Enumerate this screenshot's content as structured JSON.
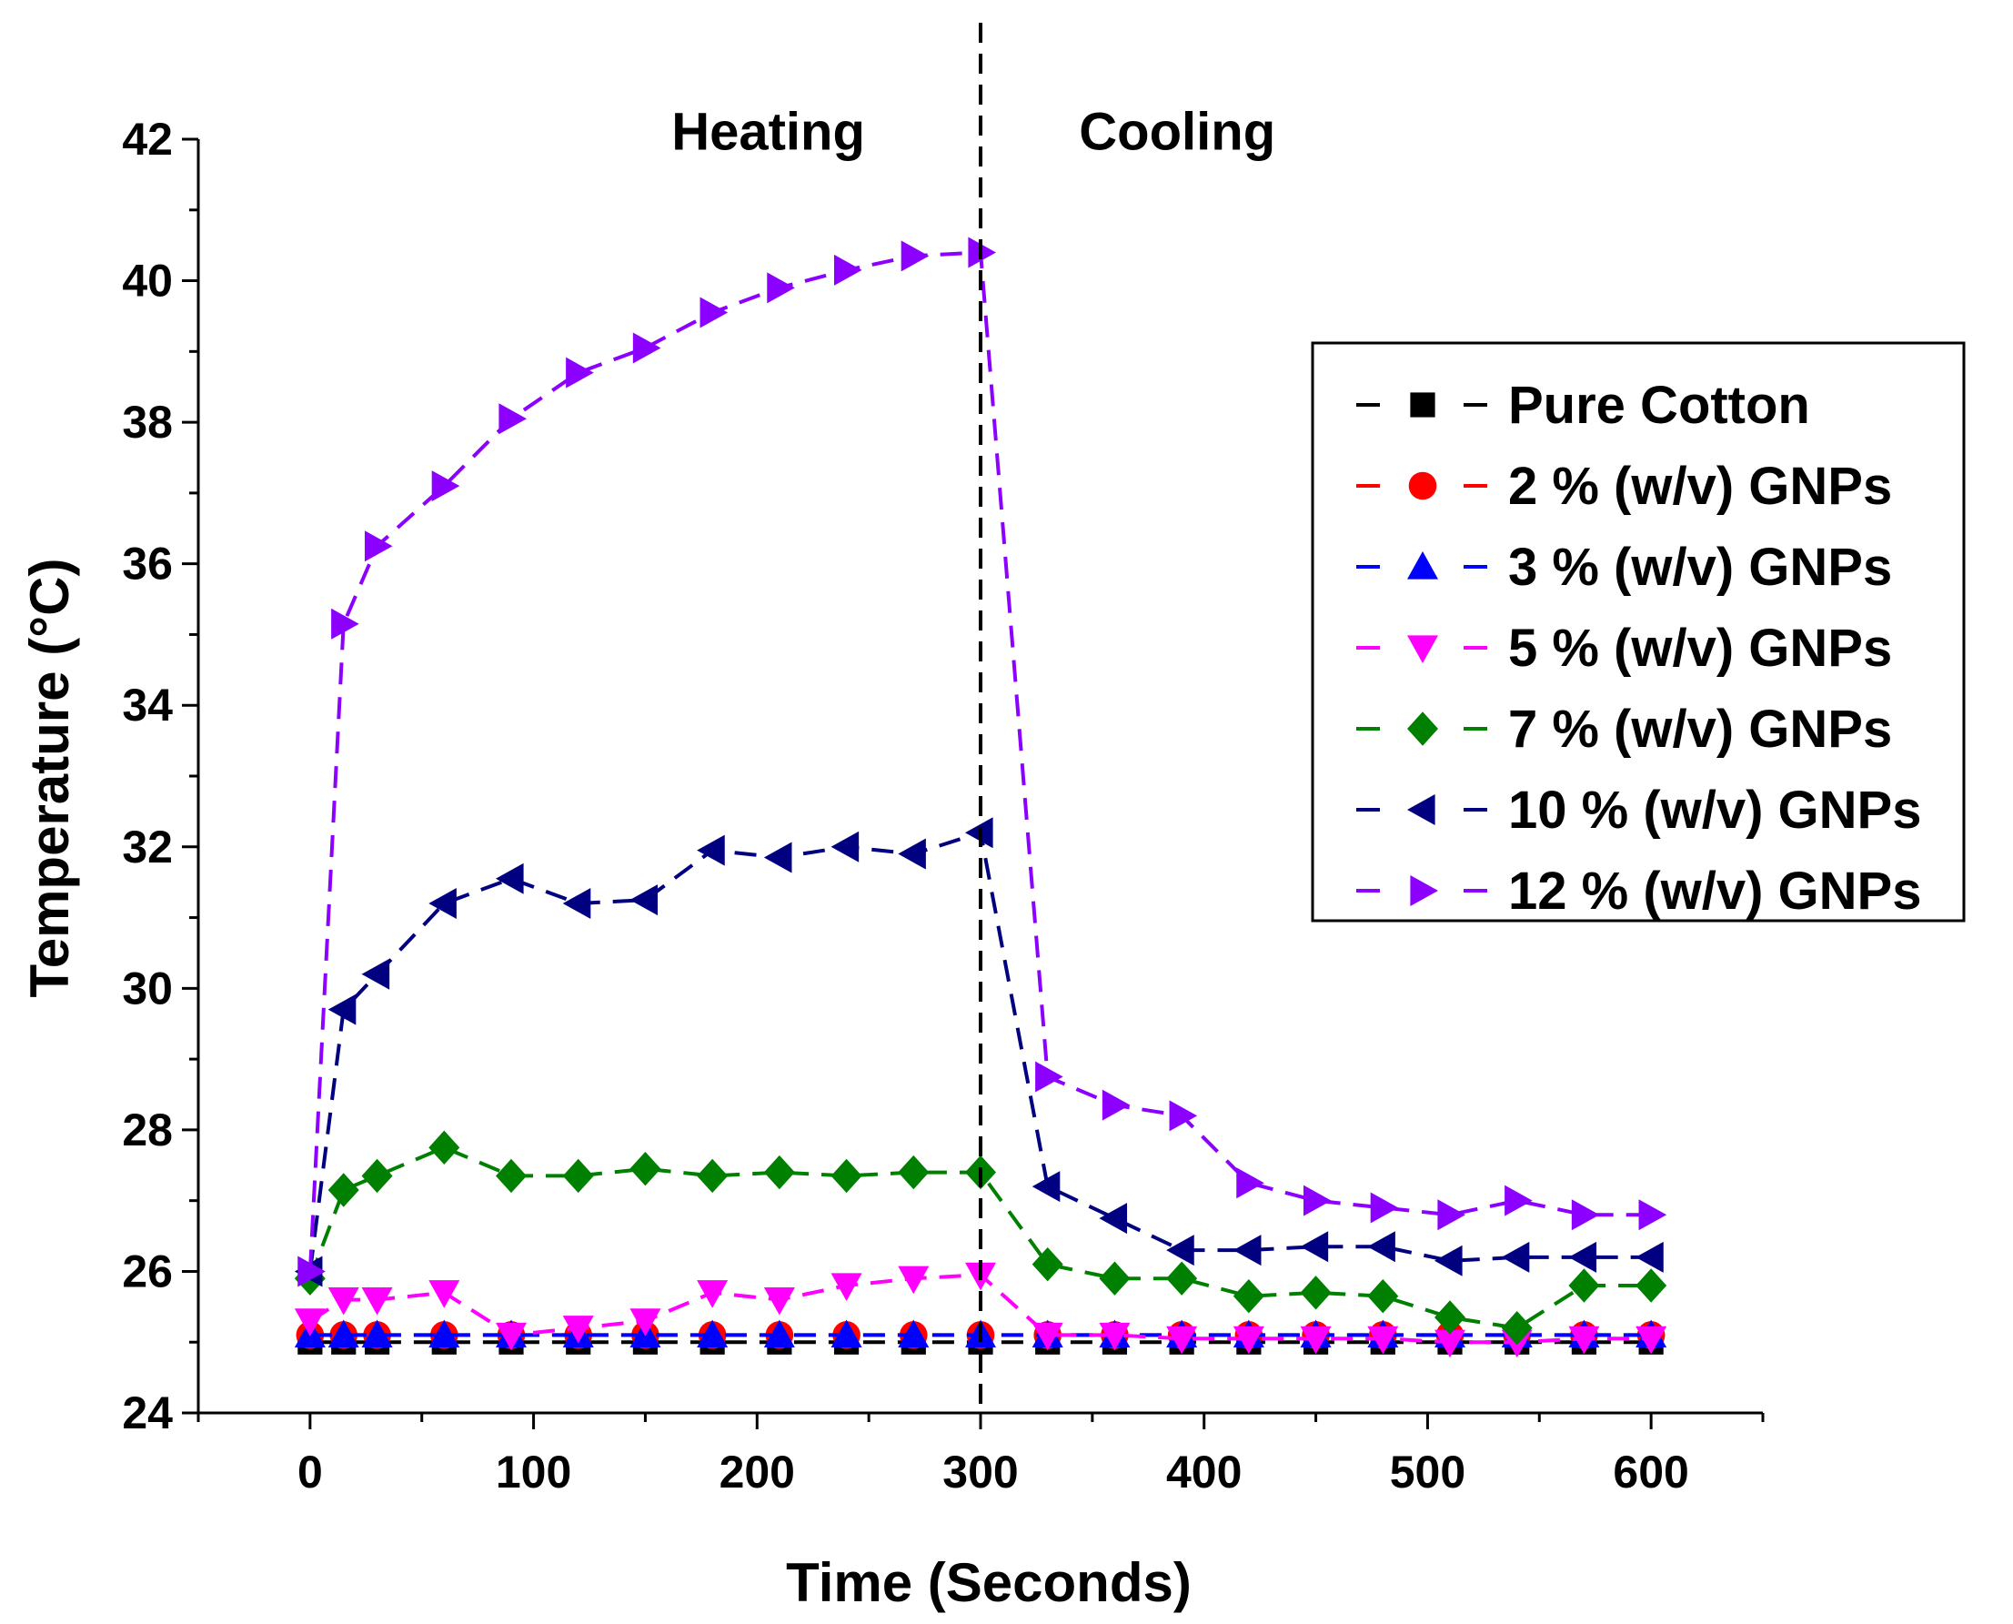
{
  "chart_data": {
    "type": "line",
    "title": "",
    "xlabel": "Time (Seconds)",
    "ylabel": "Temperature (°C)",
    "xlim": [
      -50,
      650
    ],
    "ylim": [
      24,
      42
    ],
    "xticks": [
      0,
      100,
      200,
      300,
      400,
      500,
      600
    ],
    "yticks": [
      24,
      26,
      28,
      30,
      32,
      34,
      36,
      38,
      40,
      42
    ],
    "grid": false,
    "legend_position": "right",
    "annotations": [
      {
        "id": "heating",
        "text": "Heating",
        "x": 205,
        "y": 41.85
      },
      {
        "id": "cooling",
        "text": "Cooling",
        "x": 388,
        "y": 41.85
      }
    ],
    "divider_x": 300,
    "x": [
      0,
      15,
      30,
      60,
      90,
      120,
      150,
      180,
      210,
      240,
      270,
      300,
      330,
      360,
      390,
      420,
      450,
      480,
      510,
      540,
      570,
      600
    ],
    "series": [
      {
        "name": "Pure Cotton",
        "color": "#000000",
        "marker": "square",
        "values": [
          25.0,
          25.0,
          25.0,
          25.0,
          25.0,
          25.0,
          25.0,
          25.0,
          25.0,
          25.0,
          25.0,
          25.0,
          25.0,
          25.0,
          25.0,
          25.0,
          25.0,
          25.0,
          25.0,
          25.0,
          25.0,
          25.0
        ]
      },
      {
        "name": "2 % (w/v) GNPs",
        "color": "#ff0000",
        "marker": "circle",
        "values": [
          25.1,
          25.1,
          25.1,
          25.1,
          25.1,
          25.1,
          25.1,
          25.1,
          25.1,
          25.1,
          25.1,
          25.1,
          25.1,
          25.1,
          25.1,
          25.1,
          25.1,
          25.1,
          25.1,
          25.1,
          25.1,
          25.1
        ]
      },
      {
        "name": "3 % (w/v) GNPs",
        "color": "#0000ff",
        "marker": "triangle-up",
        "values": [
          25.1,
          25.1,
          25.1,
          25.1,
          25.1,
          25.1,
          25.1,
          25.1,
          25.1,
          25.1,
          25.1,
          25.1,
          25.1,
          25.1,
          25.1,
          25.1,
          25.1,
          25.1,
          25.1,
          25.1,
          25.1,
          25.1
        ]
      },
      {
        "name": "5 % (w/v) GNPs",
        "color": "#ff00ff",
        "marker": "triangle-down",
        "values": [
          25.3,
          25.6,
          25.6,
          25.7,
          25.1,
          25.2,
          25.3,
          25.7,
          25.6,
          25.8,
          25.9,
          25.95,
          25.1,
          25.1,
          25.05,
          25.05,
          25.05,
          25.05,
          25.0,
          25.0,
          25.05,
          25.05
        ]
      },
      {
        "name": "7 % (w/v) GNPs",
        "color": "#008000",
        "marker": "diamond",
        "values": [
          25.9,
          27.15,
          27.35,
          27.75,
          27.35,
          27.35,
          27.45,
          27.35,
          27.4,
          27.35,
          27.4,
          27.4,
          26.1,
          25.9,
          25.9,
          25.65,
          25.7,
          25.65,
          25.35,
          25.2,
          25.8,
          25.8
        ]
      },
      {
        "name": "10 % (w/v) GNPs",
        "color": "#000080",
        "marker": "triangle-left",
        "values": [
          26.0,
          29.7,
          30.2,
          31.2,
          31.55,
          31.2,
          31.25,
          31.95,
          31.85,
          32.0,
          31.9,
          32.2,
          27.2,
          26.75,
          26.3,
          26.3,
          26.35,
          26.35,
          26.15,
          26.2,
          26.2,
          26.2
        ]
      },
      {
        "name": "12 % (w/v) GNPs",
        "color": "#8b00ff",
        "marker": "triangle-right",
        "values": [
          26.0,
          35.15,
          36.25,
          37.1,
          38.05,
          38.7,
          39.05,
          39.55,
          39.9,
          40.15,
          40.35,
          40.4,
          28.75,
          28.35,
          28.2,
          27.25,
          27.0,
          26.9,
          26.8,
          27.0,
          26.8,
          26.8
        ]
      }
    ]
  }
}
